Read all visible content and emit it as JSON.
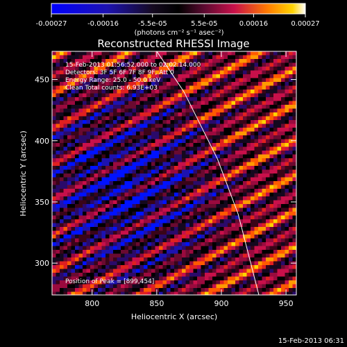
{
  "chart_data": {
    "type": "heatmap",
    "title": "Reconstructed RHESSI Image",
    "xlabel": "Heliocentric X (arcsec)",
    "ylabel": "Heliocentric Y (arcsec)",
    "xlim": [
      769,
      958
    ],
    "ylim": [
      274,
      473
    ],
    "x_ticks": [
      800,
      850,
      900,
      950
    ],
    "y_ticks": [
      300,
      350,
      400,
      450
    ],
    "colorbar": {
      "unit_label": "(photons cm⁻² s⁻¹ asec⁻²)",
      "range": [
        -0.00027,
        0.00027
      ],
      "tick_labels": [
        "-0.00027",
        "-0.00016",
        "-5.5e-05",
        "5.5e-05",
        "0.00016",
        "0.00027"
      ],
      "tick_values": [
        -0.00027,
        -0.00016,
        -5.5e-05,
        5.5e-05,
        0.00016,
        0.00027
      ]
    },
    "annotations": [
      "15-Feb-2013 01:56:52.000 to 02:02:14.000",
      "Detectors: 3F 5F 6F 7F 8F 9F, Att 0",
      "Energy Range: 25.0 - 50.0 keV",
      "Clean    Total counts: 6.93E+03"
    ],
    "peak_label": "Position of Peak = [899,454]",
    "limb_curve": [
      [
        850,
        473
      ],
      [
        871,
        440
      ],
      [
        897,
        385
      ],
      [
        913,
        340
      ],
      [
        929,
        274
      ]
    ],
    "grid": false
  },
  "footer": {
    "timestamp": "15-Feb-2013 06:31"
  },
  "colors": {
    "background": "#000000",
    "text": "#ffffff",
    "limb_line": "#ffffff"
  }
}
